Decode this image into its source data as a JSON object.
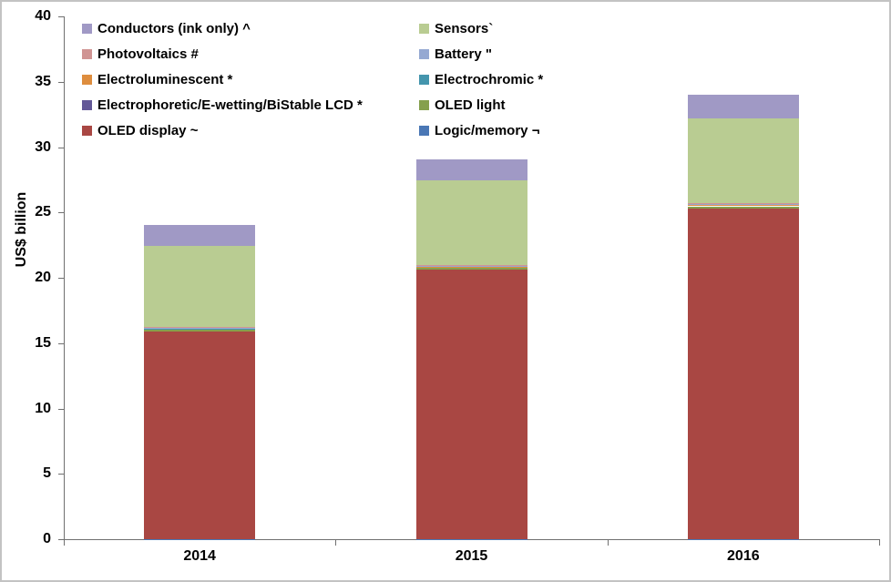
{
  "chart_data": {
    "type": "bar",
    "stacked": true,
    "title": "",
    "xlabel": "",
    "ylabel": "US$ billion",
    "ylim": [
      0,
      40
    ],
    "ytick_step": 5,
    "grid": false,
    "legend_position": "top-left-two-columns",
    "categories": [
      "2014",
      "2015",
      "2016"
    ],
    "series": [
      {
        "name": "Logic/memory ¬",
        "color": "#4A77B5",
        "values": [
          0.02,
          0.02,
          0.02
        ]
      },
      {
        "name": "OLED display ~",
        "color": "#A94743",
        "values": [
          15.9,
          20.6,
          25.3
        ]
      },
      {
        "name": "OLED light",
        "color": "#85A04D",
        "values": [
          0.1,
          0.12,
          0.15
        ]
      },
      {
        "name": "Electrophoretic/E-wetting/BiStable LCD *",
        "color": "#635897",
        "values": [
          0.1,
          0.1,
          0.1
        ]
      },
      {
        "name": "Electrochromic *",
        "color": "#4495AD",
        "values": [
          0.01,
          0.01,
          0.01
        ]
      },
      {
        "name": "Electroluminescent *",
        "color": "#DE8D3E",
        "values": [
          0.02,
          0.02,
          0.02
        ]
      },
      {
        "name": "Battery \"",
        "color": "#95A9D2",
        "values": [
          0.03,
          0.03,
          0.03
        ]
      },
      {
        "name": "Photovoltaics #",
        "color": "#D09493",
        "values": [
          0.05,
          0.05,
          0.05
        ]
      },
      {
        "name": "Sensors`",
        "color": "#B9CC92",
        "values": [
          6.2,
          6.5,
          6.5
        ]
      },
      {
        "name": "Conductors (ink only) ^",
        "color": "#A099C5",
        "values": [
          1.6,
          1.6,
          1.8
        ]
      }
    ]
  },
  "legend": {
    "columns": [
      [
        {
          "label": "Conductors (ink only) ^",
          "color": "#A099C5"
        },
        {
          "label": "Photovoltaics #",
          "color": "#D09493"
        },
        {
          "label": "Electroluminescent *",
          "color": "#DE8D3E"
        },
        {
          "label": "Electrophoretic/E-wetting/BiStable LCD *",
          "color": "#635897"
        },
        {
          "label": "OLED display ~",
          "color": "#A94743"
        }
      ],
      [
        {
          "label": "Sensors`",
          "color": "#B9CC92"
        },
        {
          "label": "Battery \"",
          "color": "#95A9D2"
        },
        {
          "label": "Electrochromic *",
          "color": "#4495AD"
        },
        {
          "label": "OLED light",
          "color": "#85A04D"
        },
        {
          "label": "Logic/memory ¬",
          "color": "#4A77B5"
        }
      ]
    ]
  },
  "axes": {
    "y_tick_labels": [
      "0",
      "5",
      "10",
      "15",
      "20",
      "25",
      "30",
      "35",
      "40"
    ],
    "x_labels": [
      "2014",
      "2015",
      "2016"
    ]
  }
}
